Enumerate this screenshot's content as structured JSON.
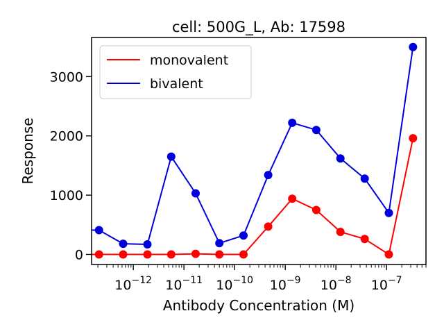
{
  "chart_data": {
    "type": "line",
    "title": "cell: 500G_L, Ab: 17598",
    "xlabel": "Antibody Concentration (M)",
    "ylabel": "Response",
    "xscale": "log",
    "xlim": [
      1.5e-13,
      6e-07
    ],
    "ylim": [
      -170,
      3660
    ],
    "x_tick_labels": [
      {
        "value": 1e-12,
        "base": "10",
        "exp": "−12"
      },
      {
        "value": 1e-11,
        "base": "10",
        "exp": "−11"
      },
      {
        "value": 1e-10,
        "base": "10",
        "exp": "−10"
      },
      {
        "value": 1e-09,
        "base": "10",
        "exp": "−9"
      },
      {
        "value": 1e-08,
        "base": "10",
        "exp": "−8"
      },
      {
        "value": 1e-07,
        "base": "10",
        "exp": "−7"
      }
    ],
    "y_ticks": [
      {
        "value": 0,
        "label": "0"
      },
      {
        "value": 1000,
        "label": "1000"
      },
      {
        "value": 2000,
        "label": "2000"
      },
      {
        "value": 3000,
        "label": "3000"
      }
    ],
    "legend": {
      "position": "top-left"
    },
    "series": [
      {
        "name": "monovalent",
        "color": "#ff0000",
        "x": [
          2.1e-13,
          6.3e-13,
          1.9e-12,
          5.6e-12,
          1.7e-11,
          5e-11,
          1.5e-10,
          4.6e-10,
          1.37e-09,
          4.1e-09,
          1.23e-08,
          3.7e-08,
          1.11e-07,
          3.33e-07
        ],
        "y": [
          0,
          0,
          0,
          0,
          10,
          0,
          0,
          470,
          940,
          750,
          380,
          260,
          0,
          1960
        ]
      },
      {
        "name": "bivalent",
        "color": "#0000dd",
        "x": [
          2.1e-13,
          6.3e-13,
          1.9e-12,
          5.6e-12,
          1.7e-11,
          5e-11,
          1.5e-10,
          4.6e-10,
          1.37e-09,
          4.1e-09,
          1.23e-08,
          3.7e-08,
          1.11e-07,
          3.33e-07
        ],
        "y": [
          410,
          180,
          170,
          1650,
          1030,
          190,
          320,
          1340,
          2220,
          2100,
          1620,
          1280,
          700,
          3500
        ]
      }
    ]
  }
}
